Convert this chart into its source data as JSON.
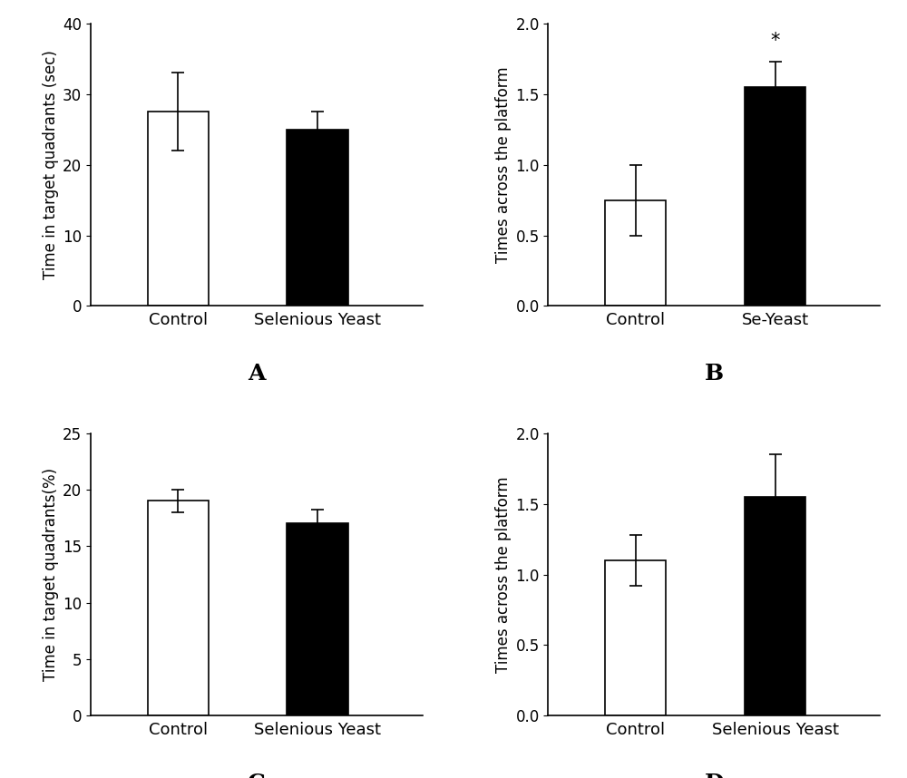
{
  "subplots": [
    {
      "label": "A",
      "ylabel": "Time in target quadrants (sec)",
      "categories": [
        "Control",
        "Selenious Yeast"
      ],
      "values": [
        27.5,
        25.0
      ],
      "errors": [
        5.5,
        2.5
      ],
      "colors": [
        "white",
        "black"
      ],
      "ylim": [
        0,
        40
      ],
      "yticks": [
        0,
        10,
        20,
        30,
        40
      ],
      "annotation": null,
      "annotation_bar_idx": null
    },
    {
      "label": "B",
      "ylabel": "Times across the platform",
      "categories": [
        "Control",
        "Se-Yeast"
      ],
      "values": [
        0.75,
        1.55
      ],
      "errors": [
        0.25,
        0.18
      ],
      "colors": [
        "white",
        "black"
      ],
      "ylim": [
        0.0,
        2.0
      ],
      "yticks": [
        0.0,
        0.5,
        1.0,
        1.5,
        2.0
      ],
      "annotation": "*",
      "annotation_bar_idx": 1
    },
    {
      "label": "C",
      "ylabel": "Time in target quadrants(%)",
      "categories": [
        "Control",
        "Selenious Yeast"
      ],
      "values": [
        19.0,
        17.0
      ],
      "errors": [
        1.0,
        1.2
      ],
      "colors": [
        "white",
        "black"
      ],
      "ylim": [
        0,
        25
      ],
      "yticks": [
        0,
        5,
        10,
        15,
        20,
        25
      ],
      "annotation": null,
      "annotation_bar_idx": null
    },
    {
      "label": "D",
      "ylabel": "Times across the platform",
      "categories": [
        "Control",
        "Selenious Yeast"
      ],
      "values": [
        1.1,
        1.55
      ],
      "errors": [
        0.18,
        0.3
      ],
      "colors": [
        "white",
        "black"
      ],
      "ylim": [
        0.0,
        2.0
      ],
      "yticks": [
        0.0,
        0.5,
        1.0,
        1.5,
        2.0
      ],
      "annotation": null,
      "annotation_bar_idx": null
    }
  ],
  "background_color": "#ffffff",
  "bar_width": 0.35,
  "tick_fontsize": 12,
  "ylabel_fontsize": 12,
  "xlabel_fontsize": 13,
  "subplot_label_fontsize": 18,
  "annotation_fontsize": 15,
  "x_positions": [
    0.7,
    1.5
  ],
  "xlim": [
    0.2,
    2.1
  ]
}
